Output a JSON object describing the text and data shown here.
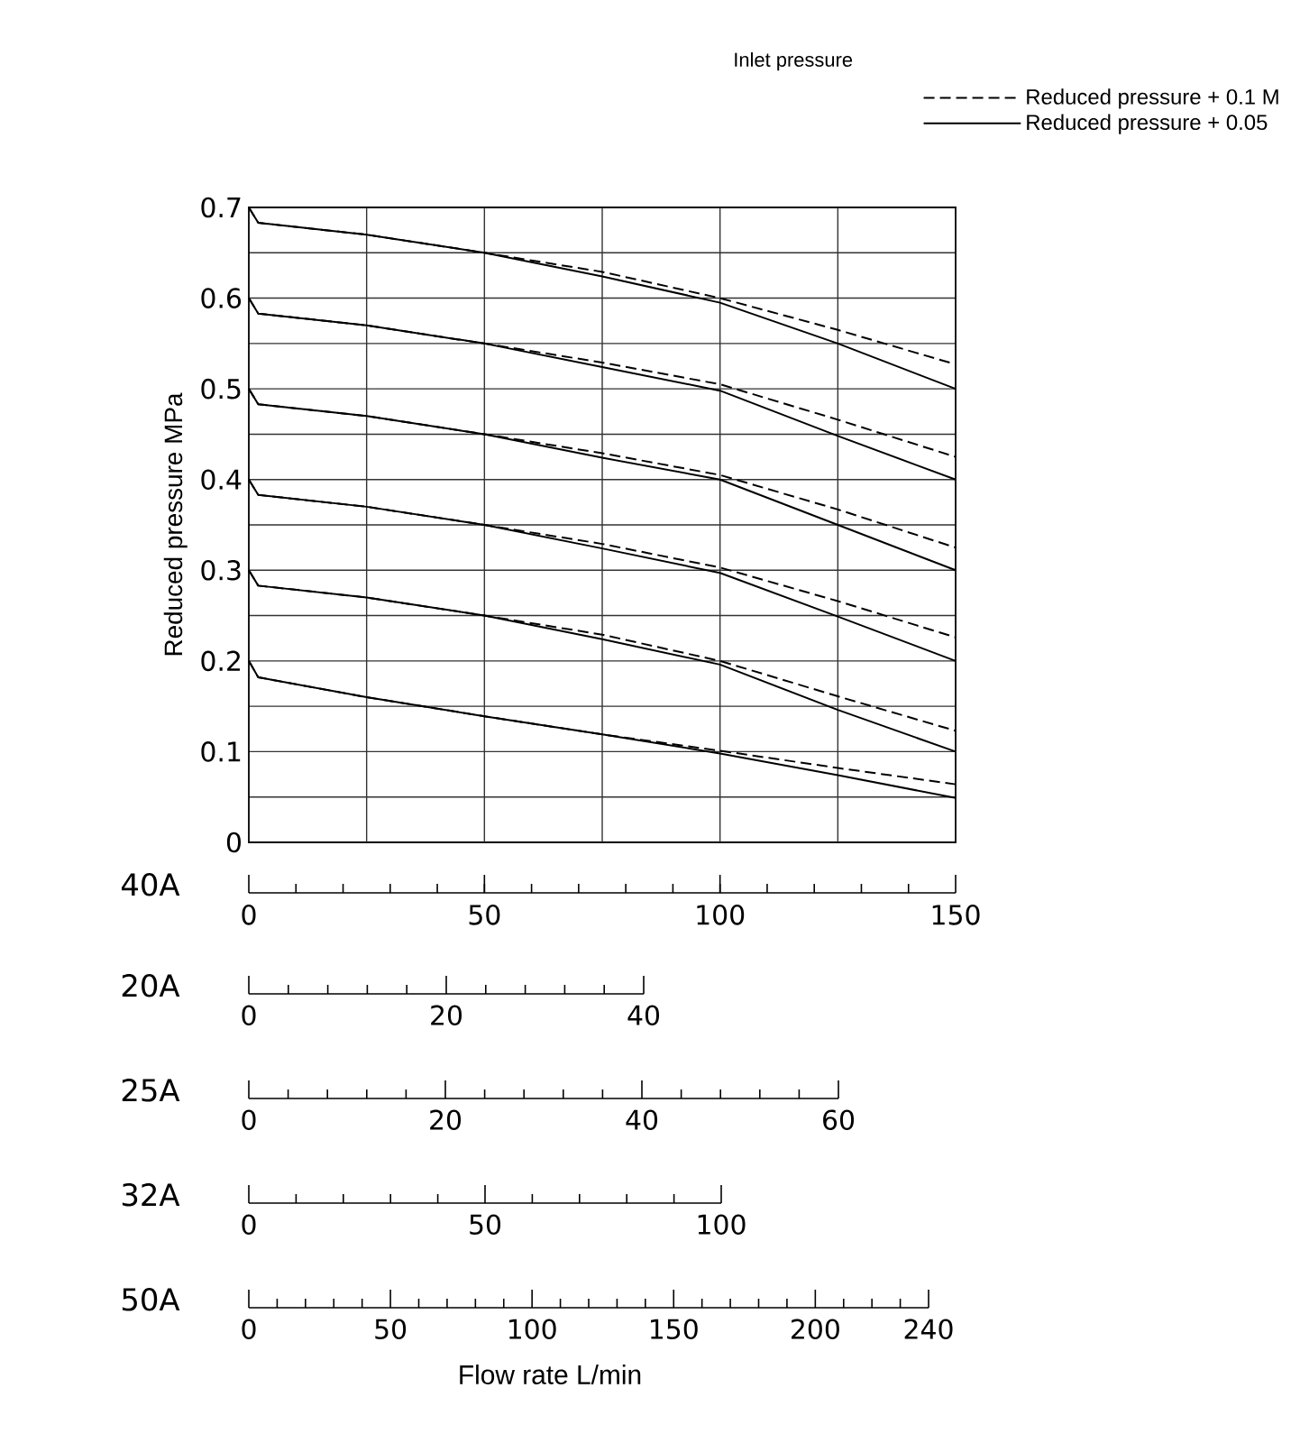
{
  "chart_data": {
    "type": "line",
    "title": "Inlet pressure",
    "ylabel": "Reduced pressure MPa",
    "xlim": [
      0,
      150
    ],
    "ylim": [
      0,
      0.7
    ],
    "xticks": [
      0,
      50,
      100,
      150
    ],
    "yticks": [
      0,
      {
        "value": 0.05,
        "label": null
      },
      0.1,
      {
        "value": 0.15,
        "label": null
      },
      0.2,
      {
        "value": 0.25,
        "label": null
      },
      0.3,
      {
        "value": 0.35,
        "label": null
      },
      0.4,
      {
        "value": 0.45,
        "label": null
      },
      0.5,
      {
        "value": 0.55,
        "label": null
      },
      0.6,
      {
        "value": 0.65,
        "label": null
      },
      0.7
    ],
    "grid": "y",
    "legend": "top right",
    "marker": "none",
    "ref_lines": [
      {
        "axis": "x",
        "value": 25
      },
      {
        "axis": "x",
        "value": 50
      },
      {
        "axis": "x",
        "value": 75
      },
      {
        "axis": "x",
        "value": 100
      },
      {
        "axis": "x",
        "value": 125
      }
    ],
    "annotations": [
      "40A",
      "20A",
      "0",
      "20",
      "40",
      "25A",
      "0",
      "20",
      "40",
      "60",
      "32A",
      "0",
      "50",
      "100",
      "50A",
      "0",
      "50",
      "100",
      "150",
      "200",
      "240",
      "Flow rate L/min"
    ],
    "series": [
      {
        "name": "Reduced pressure + 0.1 M",
        "color": "#000000",
        "line_style": "dashed",
        "x": [
          0,
          2,
          25,
          50,
          75,
          100,
          125,
          150
        ],
        "values": [
          0.7,
          0.683,
          0.67,
          0.65,
          0.629,
          0.6,
          0.565,
          0.527
        ]
      },
      {
        "name": "Reduced pressure + 0.05",
        "color": "#000000",
        "line_style": "solid",
        "x": [
          0,
          2,
          25,
          50,
          75,
          100,
          125,
          150
        ],
        "values": [
          0.7,
          0.683,
          0.67,
          0.65,
          0.624,
          0.595,
          0.55,
          0.5
        ]
      },
      {
        "color": "#000000",
        "line_style": "dashed",
        "x": [
          0,
          2,
          25,
          50,
          75,
          100,
          125,
          150
        ],
        "values": [
          0.6,
          0.583,
          0.57,
          0.55,
          0.529,
          0.505,
          0.466,
          0.425
        ]
      },
      {
        "color": "#000000",
        "line_style": "solid",
        "x": [
          0,
          2,
          25,
          50,
          75,
          100,
          125,
          150
        ],
        "values": [
          0.6,
          0.583,
          0.57,
          0.55,
          0.524,
          0.498,
          0.448,
          0.4
        ]
      },
      {
        "color": "#000000",
        "line_style": "dashed",
        "x": [
          0,
          2,
          25,
          50,
          75,
          100,
          125,
          150
        ],
        "values": [
          0.5,
          0.483,
          0.47,
          0.45,
          0.429,
          0.405,
          0.367,
          0.325
        ]
      },
      {
        "color": "#000000",
        "line_style": "solid",
        "x": [
          0,
          2,
          25,
          50,
          75,
          100,
          125,
          150
        ],
        "values": [
          0.5,
          0.483,
          0.47,
          0.45,
          0.424,
          0.4,
          0.35,
          0.3
        ]
      },
      {
        "color": "#000000",
        "line_style": "dashed",
        "x": [
          0,
          2,
          25,
          50,
          75,
          100,
          125,
          150
        ],
        "values": [
          0.4,
          0.383,
          0.37,
          0.35,
          0.329,
          0.303,
          0.266,
          0.226
        ]
      },
      {
        "color": "#000000",
        "line_style": "solid",
        "x": [
          0,
          2,
          25,
          50,
          75,
          100,
          125,
          150
        ],
        "values": [
          0.4,
          0.383,
          0.37,
          0.35,
          0.324,
          0.297,
          0.249,
          0.2
        ]
      },
      {
        "color": "#000000",
        "line_style": "dashed",
        "x": [
          0,
          2,
          25,
          50,
          75,
          100,
          125,
          150
        ],
        "values": [
          0.3,
          0.283,
          0.27,
          0.25,
          0.229,
          0.2,
          0.161,
          0.123
        ]
      },
      {
        "color": "#000000",
        "line_style": "solid",
        "x": [
          0,
          2,
          25,
          50,
          75,
          100,
          125,
          150
        ],
        "values": [
          0.3,
          0.283,
          0.27,
          0.25,
          0.224,
          0.196,
          0.146,
          0.1
        ]
      },
      {
        "color": "#000000",
        "line_style": "dashed",
        "x": [
          0,
          2,
          25,
          50,
          75,
          100,
          125,
          150
        ],
        "values": [
          0.2,
          0.182,
          0.16,
          0.139,
          0.119,
          0.101,
          0.082,
          0.064
        ]
      },
      {
        "color": "#000000",
        "line_style": "solid",
        "x": [
          0,
          2,
          25,
          50,
          75,
          100,
          125,
          150
        ],
        "values": [
          0.2,
          0.182,
          0.16,
          0.139,
          0.119,
          0.098,
          0.074,
          0.049
        ]
      }
    ]
  }
}
